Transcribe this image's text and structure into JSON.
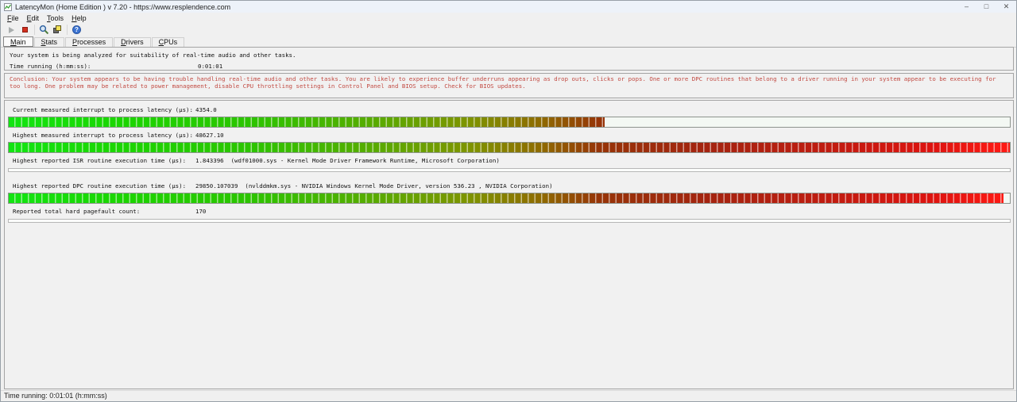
{
  "window": {
    "title": "LatencyMon (Home Edition ) v 7.20 - https://www.resplendence.com",
    "controls": {
      "minimize": "–",
      "maximize": "□",
      "close": "✕"
    }
  },
  "menu_bar": {
    "items": [
      "File",
      "Edit",
      "Tools",
      "Help"
    ]
  },
  "toolbar": {
    "icons": [
      {
        "name": "play-button",
        "enabled": false
      },
      {
        "name": "stop-button",
        "enabled": true
      },
      {
        "name": "analyze-button",
        "enabled": true
      },
      {
        "name": "copy-report-button",
        "enabled": true
      },
      {
        "name": "help-button",
        "enabled": true,
        "glyph": "?"
      }
    ]
  },
  "tab_bar": {
    "tabs": [
      "Main",
      "Stats",
      "Processes",
      "Drivers",
      "CPUs"
    ],
    "selected": "Main"
  },
  "analysis_panel": {
    "status_text": "Your system is being analyzed for suitability of real-time audio and other tasks.",
    "time_running_label": "Time running (h:mm:ss):",
    "time_running_value": "0:01:01"
  },
  "conclusion_panel": {
    "text": "Conclusion: Your system appears to be having trouble handling real-time audio and other tasks. You are likely to experience buffer underruns appearing as drop outs, clicks or pops. One or more DPC routines that belong to a driver running in your system appear to be executing for too long. One problem may be related to power management, disable CPU throttling settings in Control Panel and BIOS setup. Check for BIOS updates.",
    "text_color": "#c24a42"
  },
  "measurements": [
    {
      "label": "Current measured interrupt to process latency (µs):",
      "value": "4354.0",
      "detail": "",
      "bar_percent": 59.5
    },
    {
      "label": "Highest measured interrupt to process latency (µs):",
      "value": "48627.10",
      "detail": "",
      "bar_percent": 100
    },
    {
      "label": "Highest reported ISR routine execution time (µs):",
      "value": "1.843396",
      "detail": "(wdf01000.sys - Kernel Mode Driver Framework Runtime, Microsoft Corporation)",
      "bar_percent": 0
    },
    {
      "label": "Highest reported DPC routine execution time (µs):",
      "value": "29850.107039",
      "detail": "(nvlddmkm.sys - NVIDIA Windows Kernel Mode Driver, version 536.23 , NVIDIA Corporation)",
      "bar_percent": 99.4
    },
    {
      "label": "Reported total hard pagefault count:",
      "value": "170",
      "detail": "",
      "bar_percent": 0
    }
  ],
  "bar_gradient": [
    "#12e412 0%",
    "#1cd400 12%",
    "#2cc400 24%",
    "#56ac00 36%",
    "#7e9400 46%",
    "#8e6c00 53%",
    "#963408 59%",
    "#a42410 70%",
    "#c01c10 82%",
    "#dc1410 92%",
    "#ff1a14 100%"
  ],
  "status_bar": {
    "text": "Time running: 0:01:01  (h:mm:ss)"
  }
}
